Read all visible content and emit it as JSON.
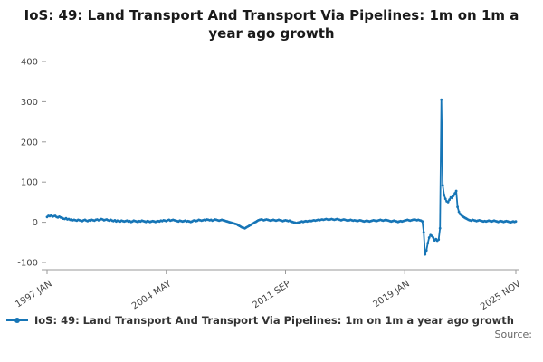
{
  "page": {
    "title": "IoS: 49: Land Transport And Transport Via Pipelines: 1m on 1m a year ago growth",
    "source_label": "Source:"
  },
  "legend": {
    "label": "IoS: 49: Land Transport And Transport Via Pipelines: 1m on 1m a year ago growth"
  },
  "chart_data": {
    "type": "line",
    "title": "IoS: 49: Land Transport And Transport Via Pipelines: 1m on 1m a year ago growth",
    "series_name": "IoS: 49: Land Transport And Transport Via Pipelines: 1m on 1m a year ago growth",
    "xlabel": "",
    "ylabel": "",
    "frequency": "monthly",
    "x_start": "1997 JAN",
    "x_end": "2025 NOV",
    "ylim": [
      -100,
      400
    ],
    "yticks": [
      -100,
      0,
      100,
      200,
      300,
      400
    ],
    "xticks": [
      {
        "label": "1997 JAN",
        "index": 0
      },
      {
        "label": "2004 MAY",
        "index": 88
      },
      {
        "label": "2011 SEP",
        "index": 176
      },
      {
        "label": "2019 JAN",
        "index": 264
      },
      {
        "label": "2025 NOV",
        "index": 346
      }
    ],
    "line_color": "#1675b6",
    "axis_color": "#9a9a9a",
    "grid": false,
    "legend_position": "bottom-left",
    "values": [
      13,
      16,
      15,
      17,
      14,
      15,
      16,
      13,
      12,
      14,
      12,
      11,
      9,
      8,
      10,
      7,
      8,
      6,
      7,
      5,
      6,
      5,
      4,
      6,
      5,
      4,
      3,
      5,
      6,
      4,
      3,
      5,
      4,
      6,
      5,
      4,
      6,
      7,
      5,
      6,
      8,
      7,
      5,
      6,
      7,
      5,
      4,
      6,
      4,
      3,
      5,
      2,
      4,
      3,
      2,
      4,
      3,
      2,
      3,
      4,
      2,
      3,
      1,
      2,
      4,
      3,
      2,
      1,
      3,
      2,
      4,
      3,
      2,
      1,
      3,
      2,
      1,
      2,
      3,
      2,
      1,
      2,
      3,
      2,
      4,
      3,
      5,
      4,
      3,
      5,
      6,
      4,
      5,
      6,
      5,
      4,
      3,
      2,
      4,
      3,
      2,
      3,
      4,
      2,
      3,
      2,
      1,
      2,
      4,
      5,
      3,
      4,
      6,
      5,
      4,
      5,
      6,
      5,
      7,
      6,
      5,
      6,
      4,
      5,
      7,
      6,
      5,
      4,
      5,
      6,
      5,
      4,
      3,
      2,
      1,
      0,
      -1,
      -2,
      -3,
      -4,
      -5,
      -7,
      -9,
      -11,
      -13,
      -14,
      -15,
      -13,
      -11,
      -9,
      -7,
      -5,
      -3,
      -1,
      1,
      3,
      5,
      6,
      7,
      6,
      5,
      6,
      7,
      6,
      5,
      4,
      5,
      6,
      5,
      4,
      5,
      6,
      5,
      4,
      3,
      4,
      5,
      4,
      3,
      4,
      2,
      1,
      0,
      -1,
      -2,
      -1,
      0,
      1,
      2,
      1,
      2,
      3,
      2,
      3,
      4,
      3,
      4,
      5,
      4,
      5,
      6,
      5,
      6,
      7,
      6,
      7,
      8,
      7,
      6,
      7,
      8,
      7,
      6,
      7,
      8,
      7,
      6,
      5,
      6,
      7,
      6,
      5,
      4,
      5,
      6,
      5,
      4,
      5,
      4,
      3,
      4,
      5,
      4,
      3,
      2,
      3,
      4,
      3,
      2,
      3,
      4,
      5,
      4,
      3,
      4,
      5,
      6,
      5,
      4,
      5,
      6,
      5,
      4,
      3,
      2,
      3,
      4,
      3,
      2,
      1,
      2,
      3,
      2,
      3,
      4,
      5,
      6,
      5,
      4,
      5,
      6,
      7,
      6,
      5,
      6,
      5,
      4,
      2,
      -25,
      -80,
      -70,
      -52,
      -38,
      -32,
      -34,
      -38,
      -45,
      -42,
      -46,
      -43,
      -15,
      305,
      92,
      68,
      58,
      52,
      50,
      56,
      62,
      60,
      66,
      72,
      78,
      38,
      26,
      20,
      17,
      14,
      12,
      10,
      8,
      6,
      5,
      4,
      6,
      5,
      4,
      3,
      4,
      5,
      4,
      3,
      2,
      3,
      2,
      3,
      4,
      3,
      2,
      3,
      4,
      3,
      2,
      1,
      2,
      3,
      2,
      1,
      2,
      3,
      2,
      1,
      0,
      1,
      2,
      1,
      2
    ]
  }
}
